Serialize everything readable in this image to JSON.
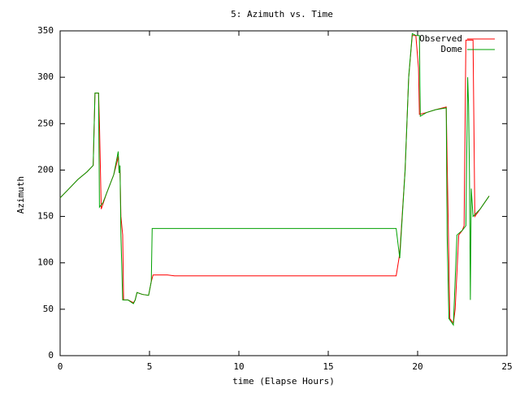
{
  "chart_data": {
    "type": "line",
    "title": "5: Azimuth vs. Time",
    "x_label": "time (Elapse Hours)",
    "y_label": "Azimuth",
    "xlim": [
      0,
      25
    ],
    "xticks": [
      0,
      5,
      10,
      15,
      20,
      25
    ],
    "ylim": [
      0,
      350
    ],
    "yticks": [
      0,
      50,
      100,
      150,
      200,
      250,
      300,
      350
    ],
    "legend": "top-right",
    "series": [
      {
        "name": "Observed",
        "color": "#ff0000",
        "x": [
          0,
          0.5,
          1,
          1.5,
          1.85,
          1.95,
          2.15,
          2.2,
          2.3,
          2.6,
          3,
          3.2,
          3.25,
          3.3,
          3.35,
          3.4,
          3.5,
          3.55,
          3.8,
          4.1,
          4.2,
          4.3,
          4.6,
          4.95,
          5.0,
          5.1,
          5.2,
          6,
          6.4,
          18.8,
          19.0,
          19.3,
          19.5,
          19.7,
          19.9,
          20.05,
          20.1,
          20.5,
          21,
          21.6,
          21.75,
          21.8,
          22,
          22.1,
          22.2,
          22.3,
          22.5,
          22.6,
          22.7,
          23.1,
          23.2,
          23.5,
          24
        ],
        "values": [
          170,
          180,
          190,
          198,
          205,
          283,
          283,
          250,
          158,
          175,
          195,
          210,
          215,
          197,
          200,
          150,
          130,
          60,
          60,
          57,
          60,
          68,
          66,
          65,
          70,
          80,
          87,
          87,
          86,
          86,
          110,
          200,
          300,
          345,
          345,
          310,
          260,
          262,
          265,
          268,
          100,
          40,
          35,
          50,
          90,
          130,
          135,
          140,
          340,
          340,
          150,
          158,
          172
        ]
      },
      {
        "name": "Dome",
        "color": "#00a000",
        "x": [
          0,
          0.5,
          1,
          1.5,
          1.85,
          1.95,
          2.15,
          2.2,
          2.4,
          2.6,
          3,
          3.25,
          3.3,
          3.35,
          3.4,
          3.5,
          3.8,
          4.1,
          4.2,
          4.3,
          4.6,
          4.95,
          5.1,
          5.15,
          18.8,
          19.0,
          19.3,
          19.5,
          19.7,
          19.9,
          20.1,
          20.15,
          20.5,
          21,
          21.6,
          21.65,
          21.75,
          22,
          22.2,
          22.5,
          22.7,
          22.8,
          22.85,
          22.9,
          22.95,
          23.0,
          23.1,
          23.5,
          24
        ],
        "values": [
          170,
          180,
          190,
          198,
          205,
          283,
          283,
          160,
          165,
          175,
          195,
          220,
          197,
          205,
          130,
          60,
          60,
          56,
          60,
          68,
          66,
          65,
          80,
          137,
          137,
          105,
          200,
          300,
          347,
          345,
          345,
          258,
          262,
          265,
          267,
          130,
          40,
          33,
          130,
          135,
          140,
          300,
          270,
          195,
          60,
          180,
          150,
          158,
          172
        ]
      }
    ]
  }
}
